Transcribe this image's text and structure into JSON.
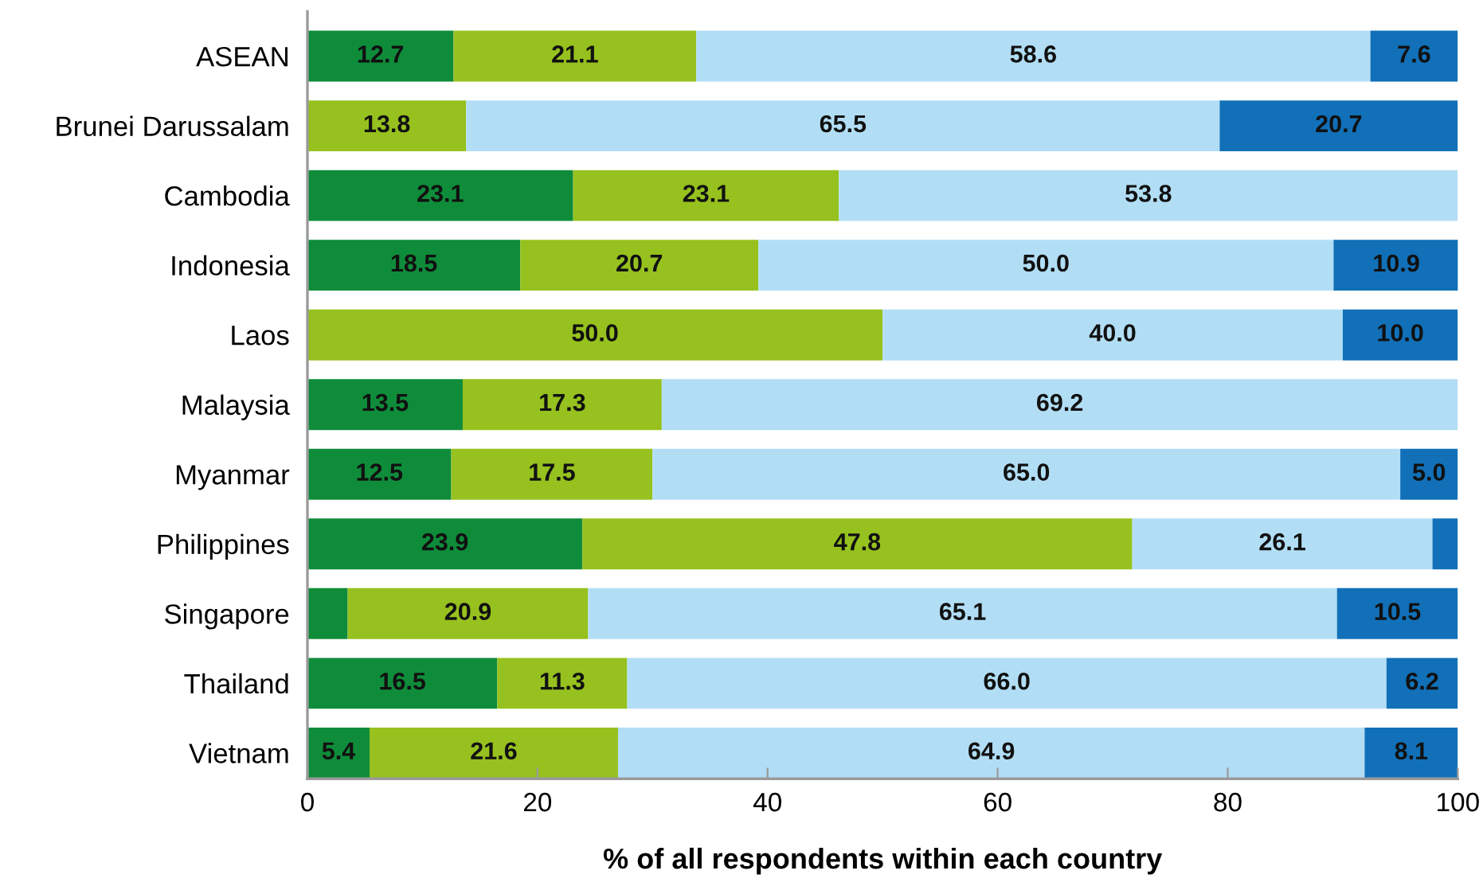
{
  "chart_data": {
    "type": "bar",
    "orientation": "horizontal",
    "stacked": true,
    "xlabel": "% of all respondents within each country",
    "categories": [
      "ASEAN",
      "Brunei Darussalam",
      "Cambodia",
      "Indonesia",
      "Laos",
      "Malaysia",
      "Myanmar",
      "Philippines",
      "Singapore",
      "Thailand",
      "Vietnam"
    ],
    "series": [
      {
        "color": "#0f8c3a",
        "values": [
          12.7,
          null,
          23.1,
          18.5,
          null,
          13.5,
          12.5,
          23.9,
          3.5,
          16.5,
          5.4
        ],
        "value_labels": [
          "12.7",
          null,
          "23.1",
          "18.5",
          null,
          "13.5",
          "12.5",
          "23.9",
          null,
          "16.5",
          "5.4"
        ]
      },
      {
        "color": "#96c11f",
        "values": [
          21.1,
          13.8,
          23.1,
          20.7,
          50.0,
          17.3,
          17.5,
          47.8,
          20.9,
          11.3,
          21.6
        ],
        "value_labels": [
          "21.1",
          "13.8",
          "23.1",
          "20.7",
          "50.0",
          "17.3",
          "17.5",
          "47.8",
          "20.9",
          "11.3",
          "21.6"
        ]
      },
      {
        "color": "#b2def5",
        "values": [
          58.6,
          65.5,
          53.8,
          50.0,
          40.0,
          69.2,
          65.0,
          26.1,
          65.1,
          66.0,
          64.9
        ],
        "value_labels": [
          "58.6",
          "65.5",
          "53.8",
          "50.0",
          "40.0",
          "69.2",
          "65.0",
          "26.1",
          "65.1",
          "66.0",
          "64.9"
        ]
      },
      {
        "color": "#1170b8",
        "values": [
          7.6,
          20.7,
          null,
          10.9,
          10.0,
          null,
          5.0,
          2.2,
          10.5,
          6.2,
          8.1
        ],
        "value_labels": [
          "7.6",
          "20.7",
          null,
          "10.9",
          "10.0",
          null,
          "5.0",
          null,
          "10.5",
          "6.2",
          "8.1"
        ]
      }
    ],
    "xlim": [
      0,
      100
    ],
    "xticks": [
      0,
      20,
      40,
      60,
      80,
      100
    ]
  }
}
